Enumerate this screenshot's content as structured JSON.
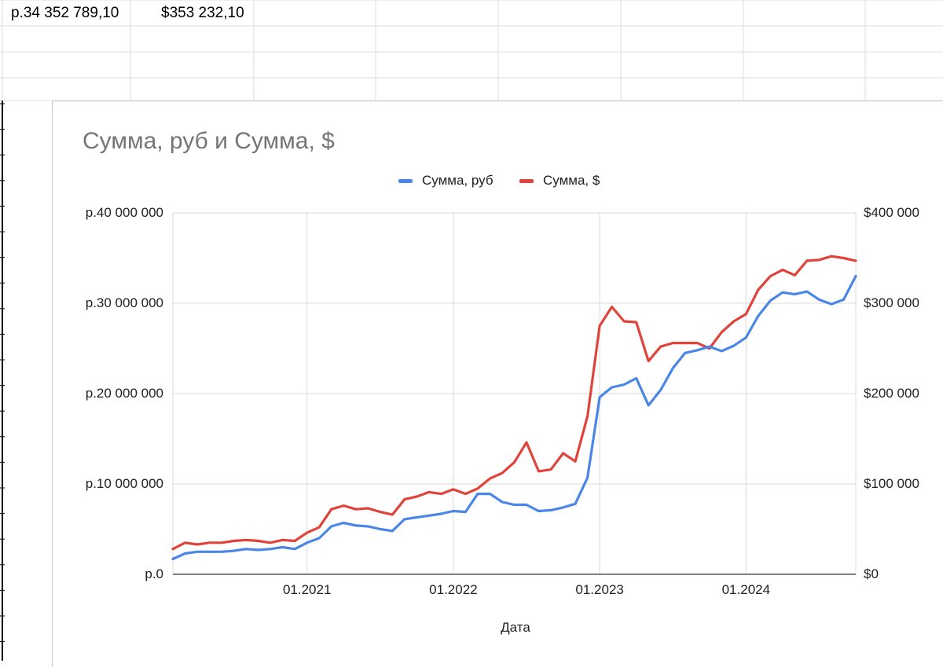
{
  "sheet": {
    "cell_a1": "р.34 352 789,10",
    "cell_b1": "$353 232,10"
  },
  "colors": {
    "rub_series": "#4a86e8",
    "usd_series": "#e0433a",
    "grid": "#d9d9d9",
    "title": "#757575"
  },
  "chart_data": {
    "type": "line",
    "title": "Сумма, руб и Сумма, $",
    "xlabel": "Дата",
    "ylabel_left": "",
    "ylabel_right": "",
    "legend_position": "top",
    "grid": true,
    "x_ticks": [
      "01.2021",
      "01.2022",
      "01.2023",
      "01.2024"
    ],
    "x_start": "02.2020",
    "x_end": "10.2024",
    "y_left": {
      "ticks": [
        "р.0",
        "р.10 000 000",
        "р.20 000 000",
        "р.30 000 000",
        "р.40 000 000"
      ],
      "range": [
        0,
        40000000
      ]
    },
    "y_right": {
      "ticks": [
        "$0",
        "$100 000",
        "$200 000",
        "$300 000",
        "$400 000"
      ],
      "range": [
        0,
        400000
      ]
    },
    "x": [
      "02.2020",
      "03.2020",
      "04.2020",
      "05.2020",
      "06.2020",
      "07.2020",
      "08.2020",
      "09.2020",
      "10.2020",
      "11.2020",
      "12.2020",
      "01.2021",
      "02.2021",
      "03.2021",
      "04.2021",
      "05.2021",
      "06.2021",
      "07.2021",
      "08.2021",
      "09.2021",
      "10.2021",
      "11.2021",
      "12.2021",
      "01.2022",
      "02.2022",
      "03.2022",
      "04.2022",
      "05.2022",
      "06.2022",
      "07.2022",
      "08.2022",
      "09.2022",
      "10.2022",
      "11.2022",
      "12.2022",
      "01.2023",
      "02.2023",
      "03.2023",
      "04.2023",
      "05.2023",
      "06.2023",
      "07.2023",
      "08.2023",
      "09.2023",
      "10.2023",
      "11.2023",
      "12.2023",
      "01.2024",
      "02.2024",
      "03.2024",
      "04.2024",
      "05.2024",
      "06.2024",
      "07.2024",
      "08.2024",
      "09.2024",
      "10.2024"
    ],
    "series": [
      {
        "name": "Сумма, руб",
        "axis": "left",
        "values": [
          1700000,
          2300000,
          2500000,
          2500000,
          2500000,
          2600000,
          2800000,
          2700000,
          2800000,
          3000000,
          2800000,
          3500000,
          4000000,
          5300000,
          5700000,
          5400000,
          5300000,
          5000000,
          4800000,
          6100000,
          6300000,
          6500000,
          6700000,
          7000000,
          6900000,
          8900000,
          8900000,
          8000000,
          7700000,
          7700000,
          7000000,
          7100000,
          7400000,
          7800000,
          10700000,
          19600000,
          20700000,
          21000000,
          21700000,
          18700000,
          20400000,
          22800000,
          24500000,
          24800000,
          25200000,
          24700000,
          25300000,
          26200000,
          28600000,
          30300000,
          31200000,
          31000000,
          31300000,
          30400000,
          29900000,
          30400000,
          33000000
        ]
      },
      {
        "name": "Сумма, $",
        "axis": "right",
        "values": [
          28000,
          35000,
          33000,
          35000,
          35000,
          37000,
          38000,
          37000,
          35000,
          38000,
          37000,
          46000,
          52000,
          72000,
          76000,
          72000,
          73000,
          69000,
          66000,
          83000,
          86000,
          91000,
          89000,
          94000,
          89000,
          95000,
          106000,
          112000,
          124000,
          146000,
          114000,
          116000,
          134000,
          125000,
          175000,
          275000,
          296000,
          280000,
          279000,
          236000,
          252000,
          256000,
          256000,
          256000,
          250000,
          268000,
          280000,
          288000,
          315000,
          330000,
          337000,
          331000,
          347000,
          348000,
          352000,
          350000,
          347000
        ]
      }
    ]
  }
}
